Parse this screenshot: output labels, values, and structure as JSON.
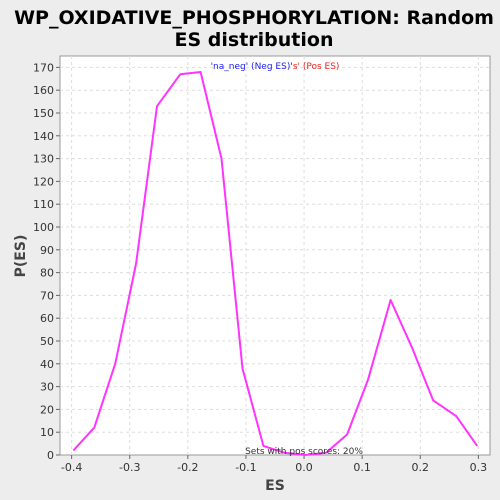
{
  "chart_data": {
    "type": "line",
    "title_line1": "WP_OXIDATIVE_PHOSPHORYLATION: Random",
    "title_line2": "ES distribution",
    "xlabel": "ES",
    "ylabel": "P(ES)",
    "xlim": [
      -0.42,
      0.32
    ],
    "ylim": [
      0,
      175
    ],
    "x_ticks": [
      -0.4,
      -0.3,
      -0.2,
      -0.1,
      0.0,
      0.1,
      0.2,
      0.3
    ],
    "x_tick_labels": [
      "-0.4",
      "-0.3",
      "-0.2",
      "-0.1",
      "0.0",
      "0.1",
      "0.2",
      "0.3"
    ],
    "y_ticks": [
      0,
      10,
      20,
      30,
      40,
      50,
      60,
      70,
      80,
      90,
      100,
      110,
      120,
      130,
      140,
      150,
      160,
      170
    ],
    "grid": true,
    "legend": {
      "placement": "top-center",
      "parts": [
        {
          "text": "'na_neg' (Neg ES)",
          "color": "#2222ee"
        },
        {
          "text": "'",
          "color": "#222222"
        },
        {
          "text": "s' (Pos ES)",
          "color": "#ee2222"
        }
      ]
    },
    "annotation": "Sets with pos scores: 20%",
    "series": [
      {
        "color": "#ff33ff",
        "x": [
          -0.397,
          -0.361,
          -0.325,
          -0.289,
          -0.253,
          -0.213,
          -0.178,
          -0.142,
          -0.106,
          -0.07,
          -0.034,
          0.002,
          0.038,
          0.074,
          0.11,
          0.149,
          0.186,
          0.222,
          0.262,
          0.298
        ],
        "y": [
          2,
          12,
          40,
          84,
          153,
          167,
          168,
          130,
          38,
          4,
          1,
          0,
          1,
          9,
          33,
          68,
          47,
          24,
          17,
          4
        ]
      }
    ]
  }
}
